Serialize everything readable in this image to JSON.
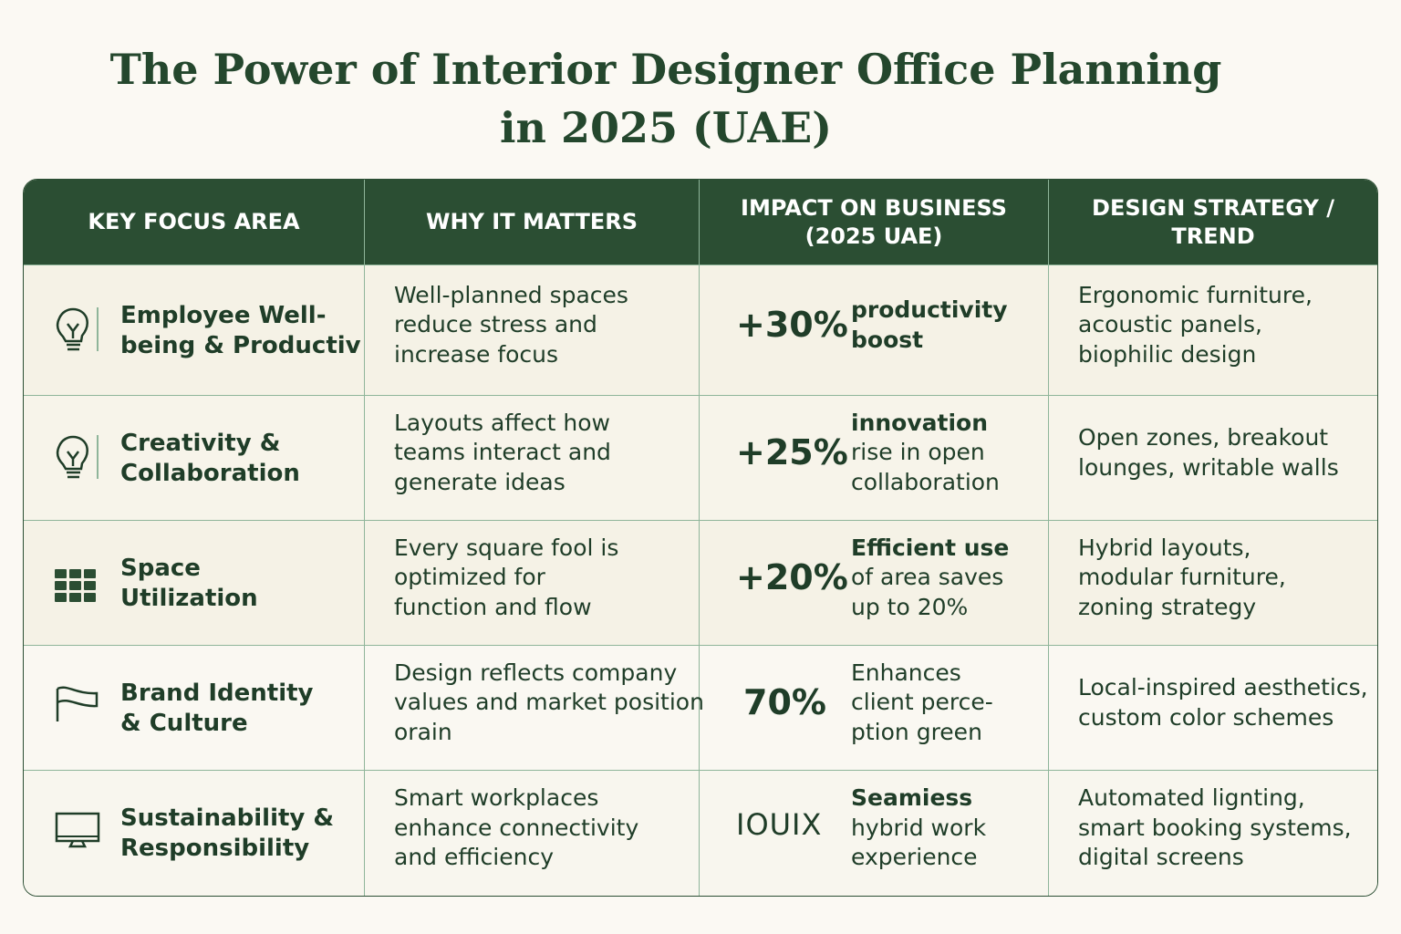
{
  "title": {
    "line1": "The Power of Interior Designer Office Planning",
    "line2": "in 2025 (UAE)"
  },
  "colors": {
    "header_bg": "#2b4e33",
    "text": "#1f3d28",
    "border": "#8fb59a",
    "background": "#fbf9f3"
  },
  "headers": [
    "KEY FOCUS AREA",
    "WHY IT MATTERS",
    "IMPACT ON BUSINESS (2025 UAE)",
    "DESIGN STRATEGY / TREND"
  ],
  "rows": [
    {
      "icon": "lightbulb-icon",
      "focus": [
        "Employee Well-",
        "being & Productiv"
      ],
      "why": [
        "Well-planned spaces",
        "reduce stress and",
        "increase focus"
      ],
      "stat": "+30%",
      "impact_bold": [
        "productivity",
        "boost"
      ],
      "impact": [],
      "strategy": [
        "Ergonomic furniture,",
        "acoustic panels,",
        "biophilic design"
      ]
    },
    {
      "icon": "lightbulb-icon",
      "focus": [
        "Creativity &",
        "Collaboration"
      ],
      "why": [
        "Layouts affect how",
        "teams interact and",
        "generate ideas"
      ],
      "stat": "+25%",
      "impact_bold": [
        "innovation"
      ],
      "impact": [
        "rise in open",
        "collaboration"
      ],
      "strategy": [
        "Open zones, breakout",
        "lounges, writable walls"
      ]
    },
    {
      "icon": "grid-icon",
      "focus": [
        "Space",
        "Utilization"
      ],
      "why": [
        "Every square fool is",
        "optimized for",
        "function and flow"
      ],
      "stat": "+20%",
      "impact_bold": [
        "Efficient use"
      ],
      "impact": [
        "of area saves",
        "up to 20%"
      ],
      "strategy": [
        "Hybrid layouts,",
        "modular furniture,",
        "zoning strategy"
      ]
    },
    {
      "icon": "flag-icon",
      "focus": [
        "Brand Identity",
        "& Culture"
      ],
      "why": [
        "Design reflects company",
        "values and market position",
        "orain"
      ],
      "stat": "70%",
      "impact_bold": [],
      "impact": [
        "Enhances",
        "client perce-",
        "ption green"
      ],
      "strategy": [
        "Local-inspired aesthetics,",
        "custom color schemes"
      ]
    },
    {
      "icon": "monitor-icon",
      "focus": [
        "Sustainability &",
        "Responsibility"
      ],
      "why": [
        "Smart workplaces",
        "enhance connectivity",
        "and efficiency"
      ],
      "stat": "IOUIX",
      "impact_bold": [
        "Seamiess"
      ],
      "impact": [
        "hybrid work",
        "experience"
      ],
      "strategy": [
        "Automated lignting,",
        "smart booking systems,",
        "digital screens"
      ]
    }
  ]
}
